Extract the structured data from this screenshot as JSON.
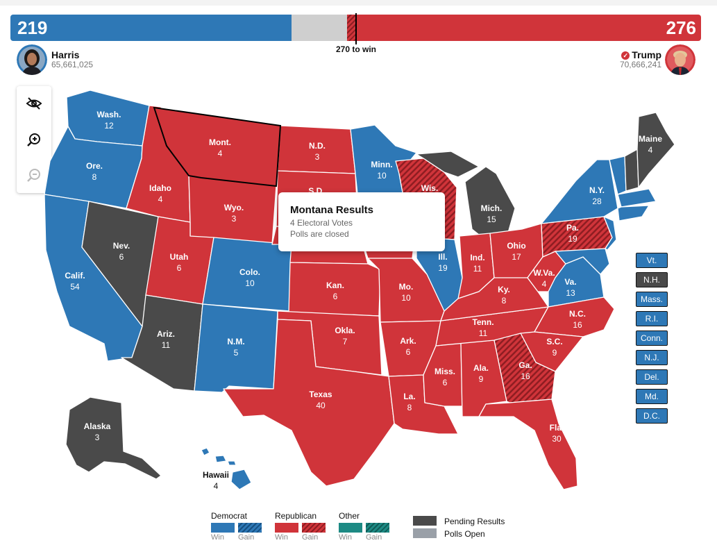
{
  "colors": {
    "democrat": "#2e78b6",
    "republican": "#d0343a",
    "other": "#1d8a84",
    "pending": "#4a4a4a",
    "polls_open": "#9aa0a8"
  },
  "scoreboard": {
    "harris_ev": "219",
    "trump_ev": "276",
    "to_win": "270 to win"
  },
  "candidates": {
    "harris": {
      "name": "Harris",
      "votes": "65,661,025",
      "avatar_icon": "harris-portrait"
    },
    "trump": {
      "name": "Trump",
      "votes": "70,666,241",
      "avatar_icon": "trump-portrait",
      "winner_icon": "check-icon"
    }
  },
  "controls": {
    "hide_icon": "eye-slash-icon",
    "zoom_in_icon": "zoom-in-icon",
    "zoom_out_icon": "zoom-out-icon"
  },
  "states": {
    "wa": {
      "name": "Wash.",
      "ev": "12"
    },
    "or": {
      "name": "Ore.",
      "ev": "8"
    },
    "ca": {
      "name": "Calif.",
      "ev": "54"
    },
    "nv": {
      "name": "Nev.",
      "ev": "6"
    },
    "id": {
      "name": "Idaho",
      "ev": "4"
    },
    "mt": {
      "name": "Mont.",
      "ev": "4"
    },
    "wy": {
      "name": "Wyo.",
      "ev": "3"
    },
    "ut": {
      "name": "Utah",
      "ev": "6"
    },
    "az": {
      "name": "Ariz.",
      "ev": "11"
    },
    "co": {
      "name": "Colo.",
      "ev": "10"
    },
    "nm": {
      "name": "N.M.",
      "ev": "5"
    },
    "nd": {
      "name": "N.D.",
      "ev": "3"
    },
    "sd": {
      "name": "S.D.",
      "ev": ""
    },
    "ks": {
      "name": "Kan.",
      "ev": "6"
    },
    "ok": {
      "name": "Okla.",
      "ev": "7"
    },
    "tx": {
      "name": "Texas",
      "ev": "40"
    },
    "mn": {
      "name": "Minn.",
      "ev": "10"
    },
    "wi": {
      "name": "Wis.",
      "ev": ""
    },
    "mi": {
      "name": "Mich.",
      "ev": "15"
    },
    "il": {
      "name": "Ill.",
      "ev": "19"
    },
    "mo": {
      "name": "Mo.",
      "ev": "10"
    },
    "ar": {
      "name": "Ark.",
      "ev": "6"
    },
    "la": {
      "name": "La.",
      "ev": "8"
    },
    "in": {
      "name": "Ind.",
      "ev": "11"
    },
    "oh": {
      "name": "Ohio",
      "ev": "17"
    },
    "ky": {
      "name": "Ky.",
      "ev": "8"
    },
    "tn": {
      "name": "Tenn.",
      "ev": "11"
    },
    "ms": {
      "name": "Miss.",
      "ev": "6"
    },
    "al": {
      "name": "Ala.",
      "ev": "9"
    },
    "ga": {
      "name": "Ga.",
      "ev": "16"
    },
    "fl": {
      "name": "Fla.",
      "ev": "30"
    },
    "sc": {
      "name": "S.C.",
      "ev": "9"
    },
    "nc": {
      "name": "N.C.",
      "ev": "16"
    },
    "va": {
      "name": "Va.",
      "ev": "13"
    },
    "wv": {
      "name": "W.Va.",
      "ev": "4"
    },
    "pa": {
      "name": "Pa.",
      "ev": "19"
    },
    "ny": {
      "name": "N.Y.",
      "ev": "28"
    },
    "me": {
      "name": "Maine",
      "ev": "4"
    },
    "ak": {
      "name": "Alaska",
      "ev": "3"
    },
    "hi": {
      "name": "Hawaii",
      "ev": "4"
    }
  },
  "tooltip": {
    "title": "Montana Results",
    "line1": "4 Electoral Votes",
    "line2": "Polls are closed"
  },
  "small_states": [
    {
      "label": "Vt.",
      "status": "democrat"
    },
    {
      "label": "N.H.",
      "status": "pending"
    },
    {
      "label": "Mass.",
      "status": "democrat"
    },
    {
      "label": "R.I.",
      "status": "democrat"
    },
    {
      "label": "Conn.",
      "status": "democrat"
    },
    {
      "label": "N.J.",
      "status": "democrat"
    },
    {
      "label": "Del.",
      "status": "democrat"
    },
    {
      "label": "Md.",
      "status": "democrat"
    },
    {
      "label": "D.C.",
      "status": "democrat"
    }
  ],
  "legend": {
    "democrat": "Democrat",
    "republican": "Republican",
    "other": "Other",
    "win": "Win",
    "gain": "Gain",
    "pending": "Pending Results",
    "polls_open": "Polls Open"
  }
}
